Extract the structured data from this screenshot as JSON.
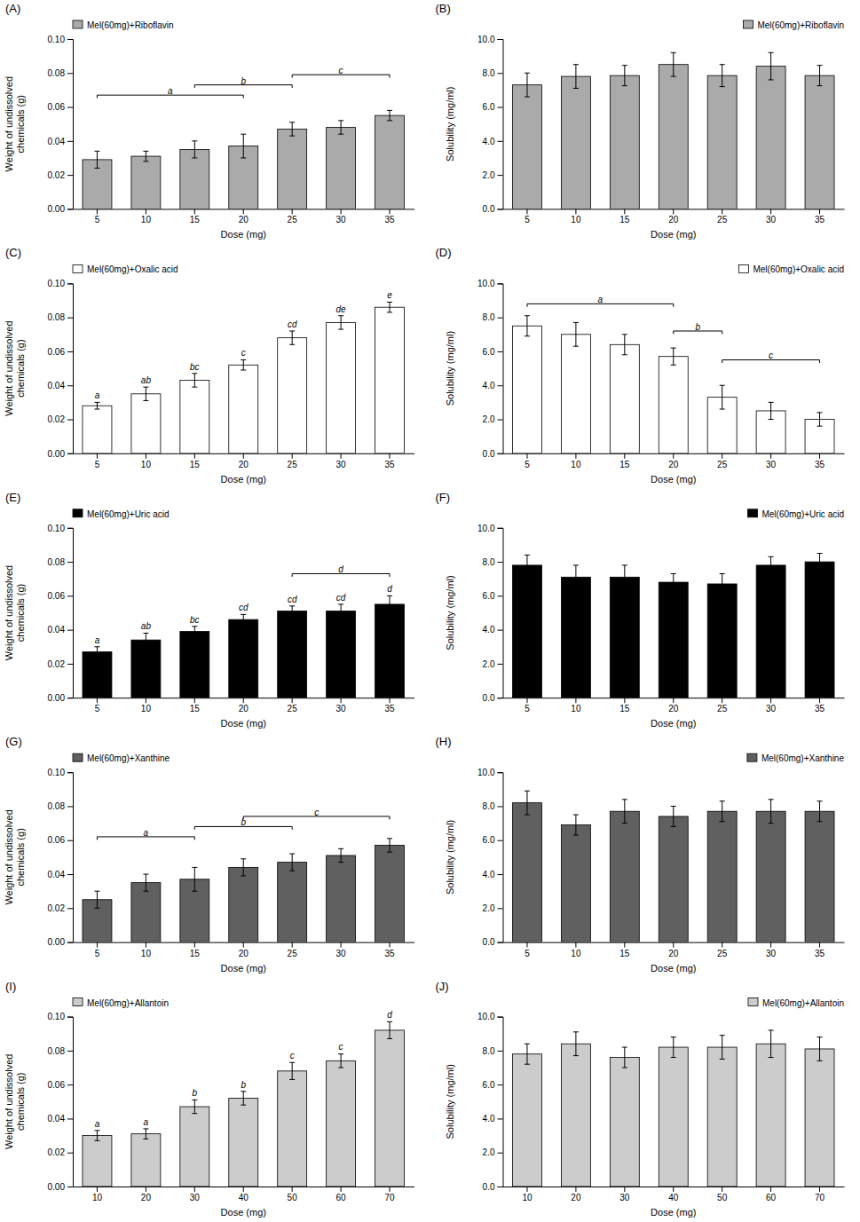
{
  "chart_data": [
    {
      "type": "bar",
      "title": "(A)",
      "xlabel": "Dose (mg)",
      "ylabel": "Weight of undissolved\nchemicals (g)",
      "categories": [
        "5",
        "10",
        "15",
        "20",
        "25",
        "30",
        "35"
      ],
      "series": [
        {
          "name": "Mel(60mg)+Riboflavin",
          "color": "#aaaaaa",
          "values": [
            0.029,
            0.031,
            0.035,
            0.037,
            0.047,
            0.048,
            0.055
          ],
          "errors": [
            0.005,
            0.003,
            0.005,
            0.007,
            0.004,
            0.004,
            0.003
          ]
        }
      ],
      "ylim": [
        0,
        0.1
      ],
      "yticks": [
        {
          "value": 0,
          "label": "0.00"
        },
        0.02,
        0.04,
        0.06,
        0.08,
        {
          "value": 0.1,
          "label": "0.10"
        }
      ],
      "legend": "upper left",
      "grid": false,
      "brackets": [
        {
          "from": "5",
          "to": "20",
          "y": 0.067,
          "label": "a"
        },
        {
          "from": "15",
          "to": "25",
          "y": 0.073,
          "label": "b"
        },
        {
          "from": "25",
          "to": "35",
          "y": 0.079,
          "label": "c"
        }
      ]
    },
    {
      "type": "bar",
      "title": "(B)",
      "xlabel": "Dose (mg)",
      "ylabel": "Solubility (mg/ml)",
      "categories": [
        "5",
        "10",
        "15",
        "20",
        "25",
        "30",
        "35"
      ],
      "series": [
        {
          "name": "Mel(60mg)+Riboflavin",
          "color": "#aaaaaa",
          "values": [
            7.3,
            7.8,
            7.85,
            8.5,
            7.85,
            8.4,
            7.85
          ],
          "errors": [
            0.7,
            0.7,
            0.6,
            0.7,
            0.65,
            0.8,
            0.6
          ]
        }
      ],
      "ylim": [
        0,
        10.0
      ],
      "yticks": [
        {
          "value": 0,
          "label": "0.0"
        },
        {
          "value": 2,
          "label": "2.0"
        },
        {
          "value": 4,
          "label": "4.0"
        },
        {
          "value": 6,
          "label": "6.0"
        },
        {
          "value": 8,
          "label": "8.0"
        },
        {
          "value": 10,
          "label": "10.0"
        }
      ],
      "legend": "upper right",
      "grid": false
    },
    {
      "type": "bar",
      "title": "(C)",
      "xlabel": "Dose (mg)",
      "ylabel": "Weight of undissolved\nchemicals (g)",
      "categories": [
        "5",
        "10",
        "15",
        "20",
        "25",
        "30",
        "35"
      ],
      "series": [
        {
          "name": "Mel(60mg)+Oxalic acid",
          "color": "#ffffff",
          "values": [
            0.028,
            0.035,
            0.043,
            0.052,
            0.068,
            0.077,
            0.086
          ],
          "errors": [
            0.002,
            0.004,
            0.004,
            0.003,
            0.004,
            0.004,
            0.003
          ],
          "sig_labels": [
            "a",
            "ab",
            "bc",
            "c",
            "cd",
            "de",
            "e"
          ]
        }
      ],
      "ylim": [
        0,
        0.1
      ],
      "yticks": [
        {
          "value": 0,
          "label": "0.00"
        },
        0.02,
        0.04,
        0.06,
        0.08,
        {
          "value": 0.1,
          "label": "0.10"
        }
      ],
      "legend": "upper left",
      "grid": false
    },
    {
      "type": "bar",
      "title": "(D)",
      "xlabel": "Dose (mg)",
      "ylabel": "Solubility (mg/ml)",
      "categories": [
        "5",
        "10",
        "15",
        "20",
        "25",
        "30",
        "35"
      ],
      "series": [
        {
          "name": "Mel(60mg)+Oxalic acid",
          "color": "#ffffff",
          "values": [
            7.5,
            7.0,
            6.4,
            5.7,
            3.3,
            2.5,
            2.0
          ],
          "errors": [
            0.6,
            0.7,
            0.6,
            0.5,
            0.7,
            0.5,
            0.4
          ]
        }
      ],
      "ylim": [
        0,
        10.0
      ],
      "yticks": [
        {
          "value": 0,
          "label": "0.0"
        },
        {
          "value": 2,
          "label": "2.0"
        },
        {
          "value": 4,
          "label": "4.0"
        },
        {
          "value": 6,
          "label": "6.0"
        },
        {
          "value": 8,
          "label": "8.0"
        },
        {
          "value": 10,
          "label": "10.0"
        }
      ],
      "legend": "upper right",
      "grid": false,
      "brackets": [
        {
          "from": "5",
          "to": "20",
          "y": 8.8,
          "label": "a"
        },
        {
          "from": "20",
          "to": "25",
          "y": 7.2,
          "label": "b"
        },
        {
          "from": "25",
          "to": "35",
          "y": 5.5,
          "label": "c"
        }
      ]
    },
    {
      "type": "bar",
      "title": "(E)",
      "xlabel": "Dose (mg)",
      "ylabel": "Weight of undissolved\nchemicals (g)",
      "categories": [
        "5",
        "10",
        "15",
        "20",
        "25",
        "30",
        "35"
      ],
      "series": [
        {
          "name": "Mel(60mg)+Uric acid",
          "color": "#000000",
          "values": [
            0.027,
            0.034,
            0.039,
            0.046,
            0.051,
            0.051,
            0.055
          ],
          "errors": [
            0.003,
            0.004,
            0.003,
            0.003,
            0.003,
            0.004,
            0.005
          ],
          "sig_labels": [
            "a",
            "ab",
            "bc",
            "cd",
            "cd",
            "cd",
            "d"
          ]
        }
      ],
      "ylim": [
        0,
        0.1
      ],
      "yticks": [
        {
          "value": 0,
          "label": "0.00"
        },
        0.02,
        0.04,
        0.06,
        0.08,
        {
          "value": 0.1,
          "label": "0.10"
        }
      ],
      "legend": "upper left",
      "grid": false,
      "brackets": [
        {
          "from": "25",
          "to": "35",
          "y": 0.073,
          "label": "d"
        }
      ]
    },
    {
      "type": "bar",
      "title": "(F)",
      "xlabel": "Dose (mg)",
      "ylabel": "Solubility (mg/ml)",
      "categories": [
        "5",
        "10",
        "15",
        "20",
        "25",
        "30",
        "35"
      ],
      "series": [
        {
          "name": "Mel(60mg)+Uric acid",
          "color": "#000000",
          "values": [
            7.8,
            7.1,
            7.1,
            6.8,
            6.7,
            7.8,
            8.0
          ],
          "errors": [
            0.6,
            0.7,
            0.7,
            0.5,
            0.6,
            0.5,
            0.5
          ]
        }
      ],
      "ylim": [
        0,
        10.0
      ],
      "yticks": [
        {
          "value": 0,
          "label": "0.0"
        },
        {
          "value": 2,
          "label": "2.0"
        },
        {
          "value": 4,
          "label": "4.0"
        },
        {
          "value": 6,
          "label": "6.0"
        },
        {
          "value": 8,
          "label": "8.0"
        },
        {
          "value": 10,
          "label": "10.0"
        }
      ],
      "legend": "upper right",
      "grid": false
    },
    {
      "type": "bar",
      "title": "(G)",
      "xlabel": "Dose (mg)",
      "ylabel": "Weight of undissolved\nchemicals (g)",
      "categories": [
        "5",
        "10",
        "15",
        "20",
        "25",
        "30",
        "35"
      ],
      "series": [
        {
          "name": "Mel(60mg)+Xanthine",
          "color": "#606060",
          "values": [
            0.025,
            0.035,
            0.037,
            0.044,
            0.047,
            0.051,
            0.057
          ],
          "errors": [
            0.005,
            0.005,
            0.007,
            0.005,
            0.005,
            0.004,
            0.004
          ]
        }
      ],
      "ylim": [
        0,
        0.1
      ],
      "yticks": [
        {
          "value": 0,
          "label": "0.00"
        },
        0.02,
        0.04,
        0.06,
        0.08,
        {
          "value": 0.1,
          "label": "0.10"
        }
      ],
      "legend": "upper left",
      "grid": false,
      "brackets": [
        {
          "from": "5",
          "to": "15",
          "y": 0.062,
          "label": "a"
        },
        {
          "from": "15",
          "to": "25",
          "y": 0.068,
          "label": "b"
        },
        {
          "from": "20",
          "to": "35",
          "y": 0.074,
          "label": "c"
        }
      ]
    },
    {
      "type": "bar",
      "title": "(H)",
      "xlabel": "Dose (mg)",
      "ylabel": "Solubility (mg/ml)",
      "categories": [
        "5",
        "10",
        "15",
        "20",
        "25",
        "30",
        "35"
      ],
      "series": [
        {
          "name": "Mel(60mg)+Xanthine",
          "color": "#606060",
          "values": [
            8.2,
            6.9,
            7.7,
            7.4,
            7.7,
            7.7,
            7.7
          ],
          "errors": [
            0.7,
            0.6,
            0.7,
            0.6,
            0.6,
            0.7,
            0.6
          ]
        }
      ],
      "ylim": [
        0,
        10.0
      ],
      "yticks": [
        {
          "value": 0,
          "label": "0.0"
        },
        {
          "value": 2,
          "label": "2.0"
        },
        {
          "value": 4,
          "label": "4.0"
        },
        {
          "value": 6,
          "label": "6.0"
        },
        {
          "value": 8,
          "label": "8.0"
        },
        {
          "value": 10,
          "label": "10.0"
        }
      ],
      "legend": "upper right",
      "grid": false
    },
    {
      "type": "bar",
      "title": "(I)",
      "xlabel": "Dose (mg)",
      "ylabel": "Weight of undissolved\nchemicals (g)",
      "categories": [
        "10",
        "20",
        "30",
        "40",
        "50",
        "60",
        "70"
      ],
      "series": [
        {
          "name": "Mel(60mg)+Allantoin",
          "color": "#cccccc",
          "values": [
            0.03,
            0.031,
            0.047,
            0.052,
            0.068,
            0.074,
            0.092
          ],
          "errors": [
            0.003,
            0.003,
            0.004,
            0.004,
            0.005,
            0.004,
            0.005
          ],
          "sig_labels": [
            "a",
            "a",
            "b",
            "b",
            "c",
            "c",
            "d"
          ]
        }
      ],
      "ylim": [
        0,
        0.1
      ],
      "yticks": [
        {
          "value": 0,
          "label": "0.00"
        },
        0.02,
        0.04,
        0.06,
        0.08,
        {
          "value": 0.1,
          "label": "0.10"
        }
      ],
      "legend": "upper left",
      "grid": false
    },
    {
      "type": "bar",
      "title": "(J)",
      "xlabel": "Dose (mg)",
      "ylabel": "Solubility (mg/ml)",
      "categories": [
        "10",
        "20",
        "30",
        "40",
        "50",
        "60",
        "70"
      ],
      "series": [
        {
          "name": "Mel(60mg)+Allantoin",
          "color": "#cccccc",
          "values": [
            7.8,
            8.4,
            7.6,
            8.2,
            8.2,
            8.4,
            8.1
          ],
          "errors": [
            0.6,
            0.7,
            0.6,
            0.6,
            0.7,
            0.8,
            0.7
          ]
        }
      ],
      "ylim": [
        0,
        10.0
      ],
      "yticks": [
        {
          "value": 0,
          "label": "0.0"
        },
        {
          "value": 2,
          "label": "2.0"
        },
        {
          "value": 4,
          "label": "4.0"
        },
        {
          "value": 6,
          "label": "6.0"
        },
        {
          "value": 8,
          "label": "8.0"
        },
        {
          "value": 10,
          "label": "10.0"
        }
      ],
      "legend": "upper right",
      "grid": false
    }
  ]
}
